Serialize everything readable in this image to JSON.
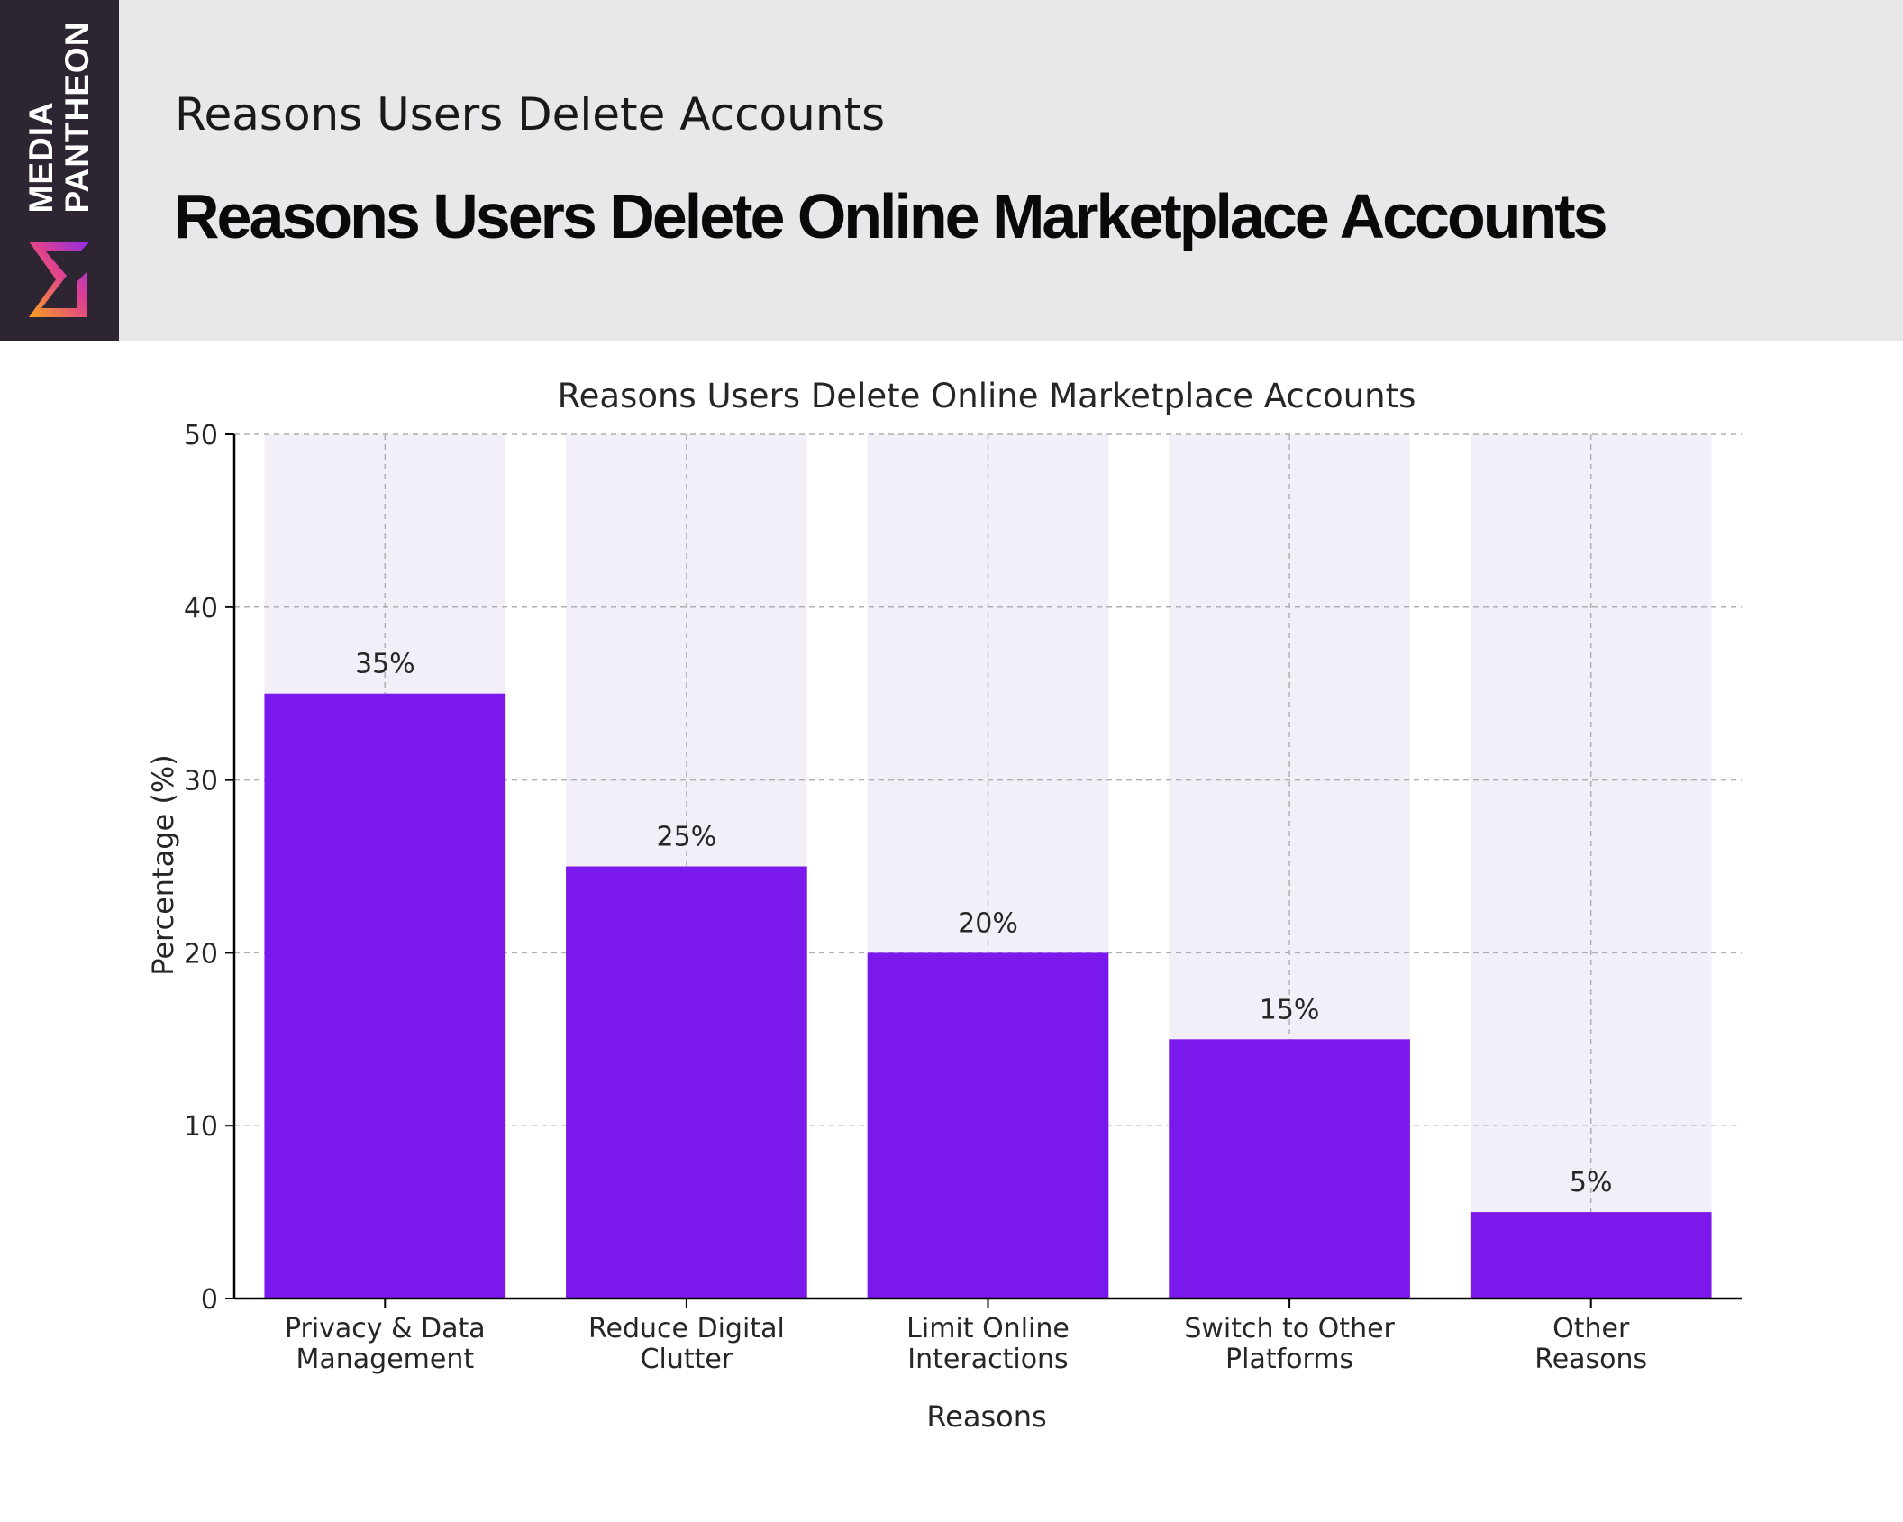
{
  "brand": {
    "line1": "MEDIA",
    "line2": "PANTHEON",
    "strip_color": "#2e2533"
  },
  "header": {
    "subtitle": "Reasons Users Delete Accounts",
    "title": "Reasons Users Delete Online Marketplace Accounts"
  },
  "chart_data": {
    "type": "bar",
    "title": "Reasons Users Delete Online Marketplace Accounts",
    "xlabel": "Reasons",
    "ylabel": "Percentage (%)",
    "categories": [
      [
        "Privacy & Data",
        "Management"
      ],
      [
        "Reduce Digital",
        "Clutter"
      ],
      [
        "Limit Online",
        "Interactions"
      ],
      [
        "Switch to Other",
        "Platforms"
      ],
      [
        "Other",
        "Reasons"
      ]
    ],
    "values": [
      35,
      25,
      20,
      15,
      5
    ],
    "data_labels": [
      "35%",
      "25%",
      "20%",
      "15%",
      "5%"
    ],
    "ylim": [
      0,
      50
    ],
    "yticks": [
      0,
      10,
      20,
      30,
      40,
      50
    ],
    "grid": true,
    "bar_color": "#7b18ec",
    "background_bar_color": "#f3eff8",
    "background_bar_value": 50
  }
}
